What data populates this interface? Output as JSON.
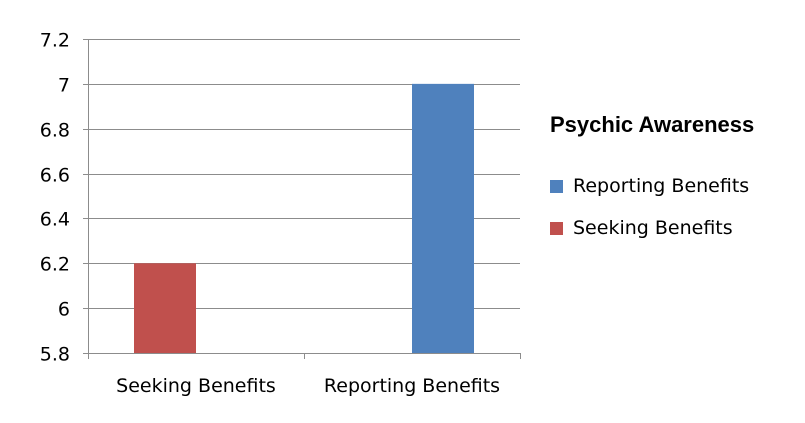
{
  "chart_data": {
    "type": "bar",
    "title": "Psychic Awareness",
    "categories": [
      "Seeking Benefits",
      "Reporting Benefits"
    ],
    "series": [
      {
        "name": "Seeking Benefits",
        "color": "#c0504d",
        "values": [
          6.2,
          null
        ]
      },
      {
        "name": "Reporting Benefits",
        "color": "#4f81bd",
        "values": [
          null,
          7.0
        ]
      }
    ],
    "ylim": [
      5.8,
      7.2
    ],
    "yticks": [
      "5.8",
      "6",
      "6.2",
      "6.4",
      "6.6",
      "6.8",
      "7",
      "7.2"
    ],
    "grid": true,
    "legend_placement": "right",
    "legend_order": [
      "Reporting Benefits",
      "Seeking Benefits"
    ]
  }
}
